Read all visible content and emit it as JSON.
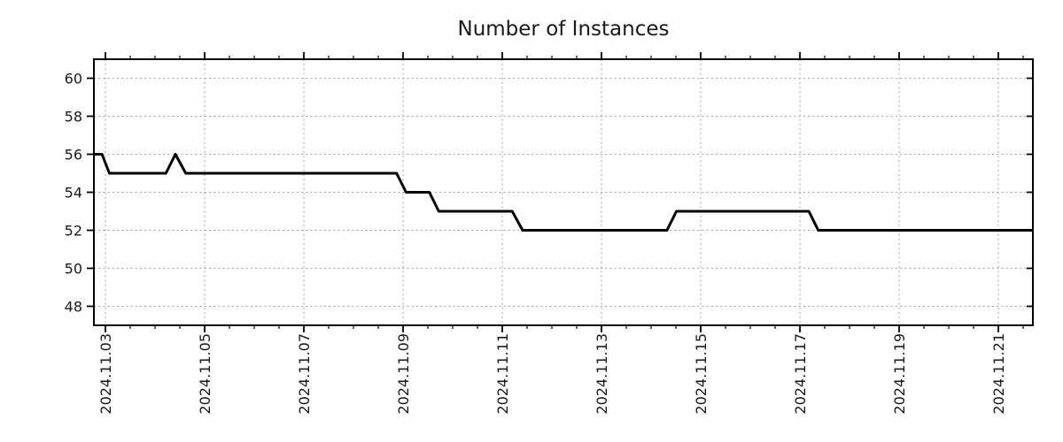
{
  "chart_data": {
    "type": "line",
    "title": "Number of Instances",
    "xlabel": "",
    "ylabel": "",
    "legend": "none",
    "grid": "dashed-major-both-axes",
    "line_color": "#000000",
    "grid_color": "#a3a3a3",
    "spine_color": "#000000",
    "text_color": "#1a1a1a",
    "ylim": [
      47,
      61
    ],
    "xlim_days_november_2024": [
      2.77,
      21.7
    ],
    "y_ticks": [
      {
        "label": "48",
        "value": 48
      },
      {
        "label": "50",
        "value": 50
      },
      {
        "label": "52",
        "value": 52
      },
      {
        "label": "54",
        "value": 54
      },
      {
        "label": "56",
        "value": 56
      },
      {
        "label": "58",
        "value": 58
      },
      {
        "label": "60",
        "value": 60
      }
    ],
    "x_ticks": [
      {
        "label": "2024.11.03",
        "day": 3
      },
      {
        "label": "2024.11.05",
        "day": 5
      },
      {
        "label": "2024.11.07",
        "day": 7
      },
      {
        "label": "2024.11.09",
        "day": 9
      },
      {
        "label": "2024.11.11",
        "day": 11
      },
      {
        "label": "2024.11.13",
        "day": 13
      },
      {
        "label": "2024.11.15",
        "day": 15
      },
      {
        "label": "2024.11.17",
        "day": 17
      },
      {
        "label": "2024.11.19",
        "day": 19
      },
      {
        "label": "2024.11.21",
        "day": 21
      }
    ],
    "x_minor_tick_step_days": 0.5,
    "series": [
      {
        "name": "Number of Instances",
        "color": "#000000",
        "points_day_value": [
          [
            2.77,
            56
          ],
          [
            2.93,
            56
          ],
          [
            3.08,
            55
          ],
          [
            4.22,
            55
          ],
          [
            4.41,
            56
          ],
          [
            4.62,
            55
          ],
          [
            8.87,
            55
          ],
          [
            9.06,
            54
          ],
          [
            9.53,
            54
          ],
          [
            9.72,
            53
          ],
          [
            11.2,
            53
          ],
          [
            11.41,
            52
          ],
          [
            14.32,
            52
          ],
          [
            14.51,
            53
          ],
          [
            17.18,
            53
          ],
          [
            17.37,
            52
          ],
          [
            21.7,
            52
          ]
        ]
      }
    ]
  }
}
